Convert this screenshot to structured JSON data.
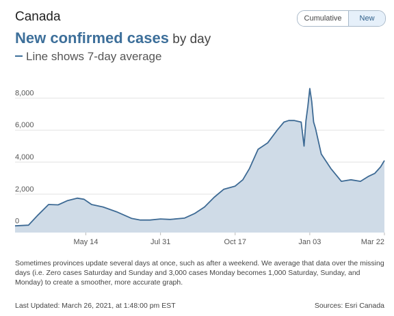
{
  "header": {
    "region": "Canada",
    "toggle_cumulative": "Cumulative",
    "toggle_new": "New",
    "title_main": "New confirmed cases",
    "title_suffix": " by day",
    "subtitle": "Line shows 7-day average"
  },
  "chart_data": {
    "type": "area",
    "x": [
      "2020-03-01",
      "2020-03-15",
      "2020-03-25",
      "2020-04-05",
      "2020-04-15",
      "2020-04-25",
      "2020-05-05",
      "2020-05-12",
      "2020-05-20",
      "2020-06-01",
      "2020-06-15",
      "2020-07-01",
      "2020-07-10",
      "2020-07-20",
      "2020-07-31",
      "2020-08-10",
      "2020-08-25",
      "2020-09-05",
      "2020-09-15",
      "2020-09-25",
      "2020-10-05",
      "2020-10-17",
      "2020-10-25",
      "2020-11-01",
      "2020-11-10",
      "2020-11-20",
      "2020-11-30",
      "2020-12-07",
      "2020-12-12",
      "2020-12-18",
      "2020-12-25",
      "2020-12-28",
      "2020-12-30",
      "2021-01-01",
      "2021-01-03",
      "2021-01-05",
      "2021-01-07",
      "2021-01-09",
      "2021-01-15",
      "2021-01-25",
      "2021-02-05",
      "2021-02-15",
      "2021-02-25",
      "2021-03-05",
      "2021-03-12",
      "2021-03-18",
      "2021-03-22"
    ],
    "values": [
      20,
      60,
      700,
      1350,
      1330,
      1600,
      1750,
      1680,
      1350,
      1200,
      900,
      480,
      380,
      380,
      450,
      420,
      500,
      800,
      1200,
      1800,
      2300,
      2500,
      2900,
      3600,
      4800,
      5200,
      6000,
      6500,
      6600,
      6600,
      6500,
      5000,
      6600,
      7500,
      8600,
      7800,
      6500,
      6100,
      4500,
      3600,
      2800,
      2900,
      2800,
      3100,
      3300,
      3700,
      4100
    ],
    "x_ticks": [
      "May 14",
      "Jul 31",
      "Oct 17",
      "Jan 03",
      "Mar 22"
    ],
    "x_tick_dates": [
      "2020-05-14",
      "2020-07-31",
      "2020-10-17",
      "2021-01-03",
      "2021-03-22"
    ],
    "y_ticks": [
      "0",
      "2,000",
      "4,000",
      "6,000",
      "8,000"
    ],
    "y_tick_values": [
      0,
      2000,
      4000,
      6000,
      8000
    ],
    "xlim": [
      "2020-03-01",
      "2021-03-22"
    ],
    "ylim": [
      -400,
      9000
    ],
    "grid": true,
    "colors": {
      "fill": "#cfdbe7",
      "line": "#3d6a94",
      "grid": "#e2e2e2"
    }
  },
  "footer": {
    "note": "Sometimes provinces update several days at once, such as after a weekend. We average that data over the missing days (i.e. Zero cases Saturday and Sunday and 3,000 cases Monday becomes 1,000 Saturday, Sunday, and Monday) to create a smoother, more accurate graph.",
    "last_updated": "Last Updated: March 26, 2021, at 1:48:00 pm EST",
    "sources": "Sources: Esri Canada"
  }
}
